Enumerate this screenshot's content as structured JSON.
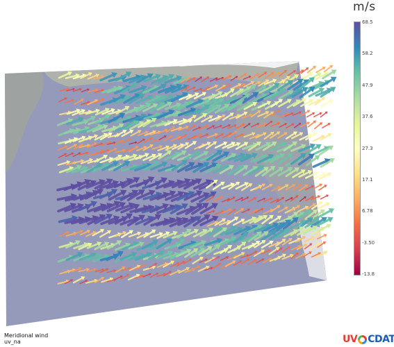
{
  "colorbar": {
    "unit": "m/s",
    "ticks": [
      "68.5",
      "58.2",
      "47.9",
      "37.6",
      "27.3",
      "17.1",
      "6.78",
      "-3.50",
      "-13.8"
    ],
    "colors": [
      "#5e4fa2",
      "#3288bd",
      "#66c2a5",
      "#abdda4",
      "#e6f598",
      "#ffffbf",
      "#fee08b",
      "#fdae61",
      "#f46d43",
      "#d53e4f",
      "#9e0142"
    ]
  },
  "caption": {
    "title": "Meridional wind",
    "subtitle": "uv_na"
  },
  "logo": {
    "left": "UV",
    "right": "CDAT"
  },
  "scene": {
    "plane_color": "#8f93b6",
    "land_color": "#9aa39b",
    "ice_color": "#f4f5f7"
  }
}
